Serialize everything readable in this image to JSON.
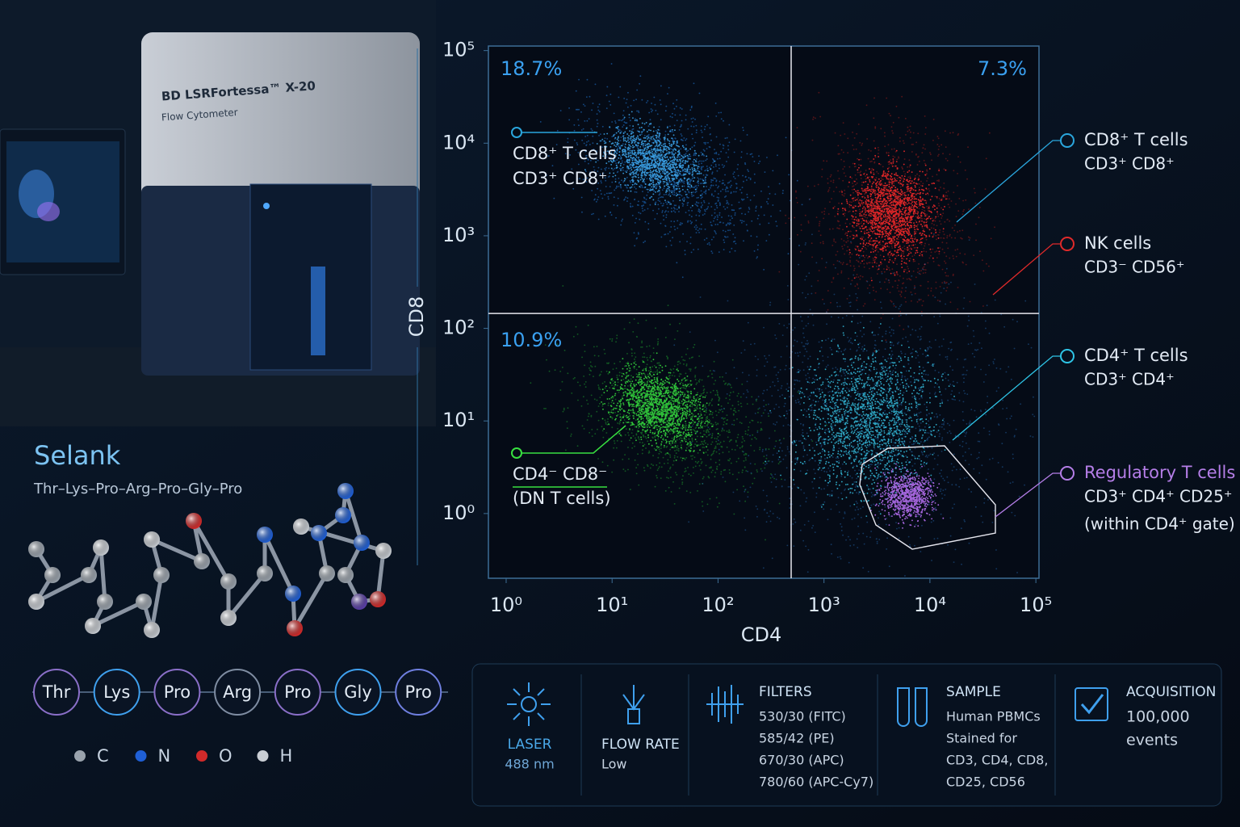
{
  "instrument": {
    "name": "BD LSRFortessa™ X-20",
    "subtitle": "Flow Cytometer"
  },
  "peptide": {
    "name": "Selank",
    "sequence": "Thr–Lys–Pro–Arg–Pro–Gly–Pro",
    "residues": [
      "Thr",
      "Lys",
      "Pro",
      "Arg",
      "Pro",
      "Gly",
      "Pro"
    ],
    "atom_legend": [
      {
        "symbol": "C",
        "color": "#9aa3ad"
      },
      {
        "symbol": "N",
        "color": "#1f5fd6"
      },
      {
        "symbol": "O",
        "color": "#d22a2a"
      },
      {
        "symbol": "H",
        "color": "#c9ced4"
      }
    ]
  },
  "chart_data": {
    "type": "scatter",
    "x_label": "CD4",
    "y_label": "CD8",
    "log_x": true,
    "log_y": true,
    "xlim": [
      0.68,
      107000
    ],
    "ylim": [
      0.2,
      112000
    ],
    "xticks": [
      {
        "value": 1,
        "label": "10⁰"
      },
      {
        "value": 10,
        "label": "10¹"
      },
      {
        "value": 100,
        "label": "10²"
      },
      {
        "value": 1000,
        "label": "10³"
      },
      {
        "value": 10000,
        "label": "10⁴"
      },
      {
        "value": 100000,
        "label": "10⁵"
      }
    ],
    "yticks": [
      {
        "value": 1,
        "label": "10⁰"
      },
      {
        "value": 10,
        "label": "10¹"
      },
      {
        "value": 100,
        "label": "10²"
      },
      {
        "value": 1000,
        "label": "10³"
      },
      {
        "value": 10000,
        "label": "10⁴"
      },
      {
        "value": 100000,
        "label": "10⁵"
      }
    ],
    "gates": {
      "x": 490,
      "y": 145
    },
    "quadrant_labels": {
      "upper_left": "18.7%",
      "upper_right": "7.3%",
      "lower_left": "10.9%"
    },
    "inline_labels": [
      [
        "CD8⁺ T cells",
        "CD3⁺ CD8⁺"
      ],
      [
        "CD4⁻ CD8⁻",
        "(DN T cells)"
      ]
    ],
    "legend": [
      {
        "name": "CD8⁺ T cells",
        "detail": [
          "CD3⁺ CD8⁺"
        ],
        "color": "#2aa6dd"
      },
      {
        "name": "NK cells",
        "detail": [
          "CD3⁻ CD56⁺"
        ],
        "color": "#e02a2a"
      },
      {
        "name": "CD4⁺ T cells",
        "detail": [
          "CD3⁺ CD4⁺"
        ],
        "color": "#2ec4e6"
      },
      {
        "name": "Regulatory T cells",
        "detail": [
          "CD3⁺ CD4⁺ CD25⁺",
          "(within CD4⁺ gate)"
        ],
        "color": "#b57ee8"
      }
    ]
  },
  "settings": [
    {
      "title": "LASER",
      "lines": [
        "488 nm"
      ]
    },
    {
      "title": "FLOW RATE",
      "lines": [
        "Low"
      ]
    },
    {
      "title": "FILTERS",
      "lines": [
        "530/30 (FITC)",
        "585/42 (PE)",
        "670/30 (APC)",
        "780/60 (APC-Cy7)"
      ]
    },
    {
      "title": "SAMPLE",
      "lines": [
        "Human PBMCs",
        "Stained for",
        "CD3, CD4, CD8,",
        "CD25, CD56"
      ]
    },
    {
      "title": "ACQUISITION",
      "lines": [
        "100,000",
        "events"
      ]
    }
  ]
}
